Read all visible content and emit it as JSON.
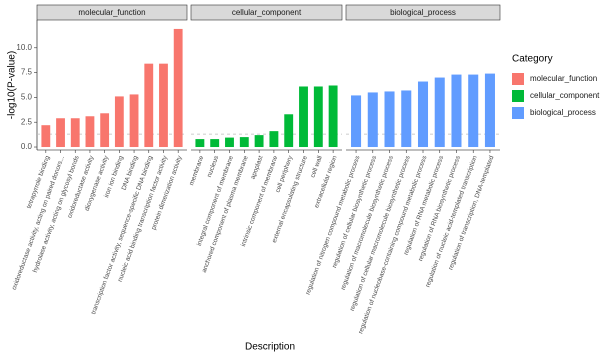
{
  "chart_data": {
    "type": "bar",
    "x_label": "Description",
    "y_label": "-log10(P-value)",
    "legend_title": "Category",
    "ylim": [
      -0.3,
      12.8
    ],
    "yticks": [
      {
        "value": 0,
        "label": "0.0"
      },
      {
        "value": 2.5,
        "label": "2.5"
      },
      {
        "value": 5,
        "label": "5.0"
      },
      {
        "value": 7.5,
        "label": "7.5"
      },
      {
        "value": 10,
        "label": "10.0"
      }
    ],
    "threshold": 1.3,
    "facets": [
      {
        "name": "molecular_function",
        "color": "#f8766d",
        "categories": [
          "tetrapyrrole binding",
          "oxidoreductase activity, acting on paired donors...",
          "hydrolase activity, acting on glycosyl bonds",
          "oxidoreductase activity",
          "dioxygenase activity",
          "iron ion binding",
          "DNA binding",
          "transcription factor activity, sequence-specific DNA binding",
          "nucleic acid binding transcription factor activity",
          "protein dimerization activity"
        ],
        "values": [
          2.2,
          2.9,
          2.9,
          3.1,
          3.4,
          5.1,
          5.3,
          8.4,
          8.4,
          11.9
        ]
      },
      {
        "name": "cellular_component",
        "color": "#00ba38",
        "categories": [
          "membrane",
          "nucleus",
          "integral component of membrane",
          "anchored component of plasma membrane",
          "apoplast",
          "intrinsic component of membrane",
          "cell periphery",
          "external encapsulating structure",
          "cell wall",
          "extracellular region"
        ],
        "values": [
          0.8,
          0.8,
          0.95,
          1.0,
          1.2,
          1.6,
          3.3,
          6.1,
          6.1,
          6.2
        ]
      },
      {
        "name": "biological_process",
        "color": "#619cff",
        "categories": [
          "regulation of nitrogen compound metabolic process",
          "regulation of cellular biosynthetic process",
          "regulation of macromolecule biosynthetic process",
          "regulation of cellular macromolecule biosynthetic process",
          "regulation of nucleobase-containing compound metabolic process",
          "regulation of RNA metabolic process",
          "regulation of RNA biosynthetic process",
          "regulation of nucleic acid-templated transcription",
          "regulation of transcription, DNA-templated"
        ],
        "values": [
          5.2,
          5.5,
          5.6,
          5.7,
          6.6,
          7.0,
          7.3,
          7.3,
          7.4
        ]
      }
    ]
  }
}
